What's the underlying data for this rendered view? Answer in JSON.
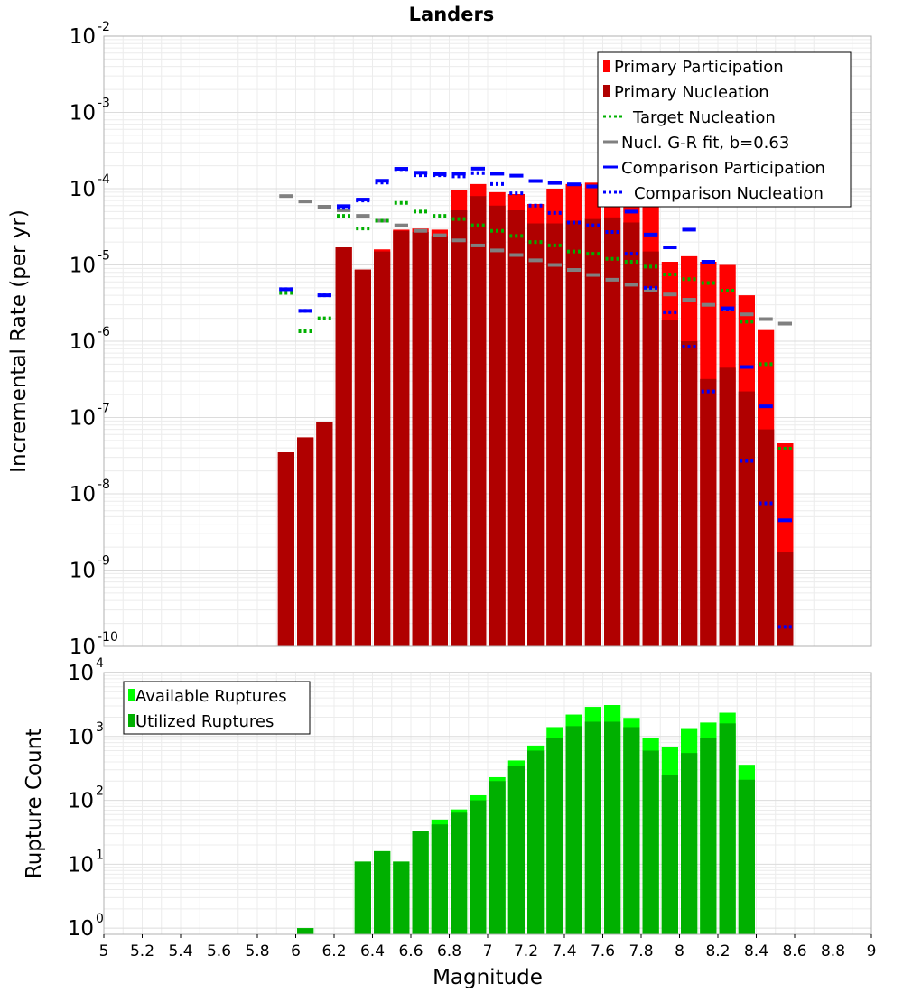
{
  "chart_data": [
    {
      "type": "bar",
      "title": "Landers",
      "xlabel": "",
      "ylabel": "Incremental Rate (per yr)",
      "yscale": "log",
      "xlim": [
        5,
        9
      ],
      "ylim": [
        1e-10,
        0.01
      ],
      "yticks": [
        {
          "base": "10",
          "exp": "-10"
        },
        {
          "base": "10",
          "exp": "-9"
        },
        {
          "base": "10",
          "exp": "-8"
        },
        {
          "base": "10",
          "exp": "-7"
        },
        {
          "base": "10",
          "exp": "-6"
        },
        {
          "base": "10",
          "exp": "-5"
        },
        {
          "base": "10",
          "exp": "-4"
        },
        {
          "base": "10",
          "exp": "-3"
        },
        {
          "base": "10",
          "exp": "-2"
        }
      ],
      "grid": true,
      "legend_placement": "top-right",
      "colors": {
        "primary_participation": "#ff0000",
        "primary_nucleation": "#b00000",
        "target_nucleation": "#00b000",
        "gr_fit": "#808080",
        "comparison": "#0000ff"
      },
      "legend": [
        "Primary Participation",
        "Primary Nucleation",
        "Target Nucleation",
        "Nucl. G-R fit, b=0.63",
        "Comparison Participation",
        "Comparison Nucleation"
      ],
      "magnitudes": [
        5.95,
        6.05,
        6.15,
        6.25,
        6.35,
        6.45,
        6.55,
        6.65,
        6.75,
        6.85,
        6.95,
        7.05,
        7.15,
        7.25,
        7.35,
        7.45,
        7.55,
        7.65,
        7.75,
        7.85,
        7.95,
        8.05,
        8.15,
        8.25,
        8.35,
        8.45,
        8.55
      ],
      "series": [
        {
          "name": "Primary Participation",
          "kind": "bar",
          "values": [
            3.5e-08,
            5.5e-08,
            8.8e-08,
            1.7e-05,
            8.7e-06,
            1.6e-05,
            2.9e-05,
            3e-05,
            2.9e-05,
            9.5e-05,
            0.000115,
            9e-05,
            8.5e-05,
            6.3e-05,
            0.0001,
            0.000115,
            0.00012,
            0.000145,
            0.00011,
            6.2e-05,
            1.1e-05,
            1.3e-05,
            1.1e-05,
            1e-05,
            4e-06,
            1.4e-06,
            4.6e-08
          ]
        },
        {
          "name": "Primary Nucleation",
          "kind": "bar",
          "values": [
            3.5e-08,
            5.5e-08,
            8.8e-08,
            1.7e-05,
            8.7e-06,
            1.5e-05,
            2.8e-05,
            2.7e-05,
            2.4e-05,
            5.2e-05,
            8e-05,
            6e-05,
            5.2e-05,
            3.5e-05,
            3.5e-05,
            3.8e-05,
            4e-05,
            4.2e-05,
            3.6e-05,
            1.5e-05,
            1.9e-06,
            1e-06,
            3.2e-07,
            4.5e-07,
            2.2e-07,
            7e-08,
            1.7e-09
          ]
        },
        {
          "name": "Target Nucleation",
          "kind": "dotted-step",
          "values": [
            4.3e-06,
            1.35e-06,
            2e-06,
            4.4e-05,
            3e-05,
            3.8e-05,
            6.5e-05,
            5e-05,
            4.4e-05,
            4e-05,
            3.3e-05,
            2.8e-05,
            2.4e-05,
            2e-05,
            1.8e-05,
            1.5e-05,
            1.4e-05,
            1.2e-05,
            1.1e-05,
            9.5e-06,
            7.5e-06,
            6.5e-06,
            5.8e-06,
            4.6e-06,
            1.8e-06,
            5e-07,
            3.9e-08
          ]
        },
        {
          "name": "Nucl. G-R fit, b=0.63",
          "kind": "step",
          "values": [
            8e-05,
            6.8e-05,
            5.8e-05,
            5.2e-05,
            4.4e-05,
            3.8e-05,
            3.3e-05,
            2.8e-05,
            2.45e-05,
            2.1e-05,
            1.8e-05,
            1.55e-05,
            1.35e-05,
            1.15e-05,
            1e-05,
            8.6e-06,
            7.4e-06,
            6.4e-06,
            5.5e-06,
            4.7e-06,
            4.1e-06,
            3.5e-06,
            3e-06,
            2.6e-06,
            2.25e-06,
            1.95e-06,
            1.7e-06
          ]
        },
        {
          "name": "Comparison Participation",
          "kind": "step",
          "values": [
            4.8e-06,
            2.5e-06,
            4e-06,
            5.9e-05,
            7.2e-05,
            0.000127,
            0.000182,
            0.000162,
            0.000155,
            0.000157,
            0.000183,
            0.000157,
            0.000148,
            0.000126,
            0.000119,
            0.000114,
            0.000107,
            9.2e-05,
            5e-05,
            2.5e-05,
            1.7e-05,
            2.9e-05,
            1.1e-05,
            2.7e-06,
            4.6e-07,
            1.4e-07,
            4.5e-09
          ]
        },
        {
          "name": "Comparison Nucleation",
          "kind": "dotted-step",
          "values": [
            4.8e-06,
            2.5e-06,
            4e-06,
            5.6e-05,
            7e-05,
            0.00012,
            0.00018,
            0.00015,
            0.00015,
            0.000145,
            0.00016,
            0.000115,
            8.7e-05,
            6e-05,
            4.8e-05,
            3.6e-05,
            3.3e-05,
            2.7e-05,
            1.4e-05,
            5e-06,
            2.4e-06,
            8.5e-07,
            2.2e-07,
            2.6e-06,
            2.7e-08,
            7.5e-09,
            1.8e-10
          ]
        }
      ]
    },
    {
      "type": "bar",
      "title": "",
      "xlabel": "Magnitude",
      "ylabel": "Rupture Count",
      "yscale": "log",
      "xlim": [
        5,
        9
      ],
      "ylim": [
        0.8,
        10000
      ],
      "xticks": [
        "5",
        "5.2",
        "5.4",
        "5.6",
        "5.8",
        "6",
        "6.2",
        "6.4",
        "6.6",
        "6.8",
        "7",
        "7.2",
        "7.4",
        "7.6",
        "7.8",
        "8",
        "8.2",
        "8.4",
        "8.6",
        "8.8",
        "9"
      ],
      "yticks": [
        {
          "base": "10",
          "exp": "0"
        },
        {
          "base": "10",
          "exp": "1"
        },
        {
          "base": "10",
          "exp": "2"
        },
        {
          "base": "10",
          "exp": "3"
        },
        {
          "base": "10",
          "exp": "4"
        }
      ],
      "grid": true,
      "legend_placement": "top-left",
      "colors": {
        "available": "#00ff00",
        "utilized": "#00b000"
      },
      "legend": [
        "Available Ruptures",
        "Utilized Ruptures"
      ],
      "magnitudes": [
        6.05,
        6.35,
        6.45,
        6.55,
        6.65,
        6.75,
        6.85,
        6.95,
        7.05,
        7.15,
        7.25,
        7.35,
        7.45,
        7.55,
        7.65,
        7.75,
        7.85,
        7.95,
        8.05,
        8.15,
        8.25,
        8.35
      ],
      "series": [
        {
          "name": "Available Ruptures",
          "values": [
            1,
            11,
            16,
            11,
            33,
            50,
            72,
            120,
            230,
            420,
            720,
            1400,
            2200,
            2900,
            3100,
            1950,
            950,
            690,
            1350,
            1650,
            2350,
            360
          ]
        },
        {
          "name": "Utilized Ruptures",
          "values": [
            1,
            11,
            16,
            11,
            33,
            42,
            64,
            100,
            200,
            350,
            600,
            950,
            1450,
            1700,
            1700,
            1400,
            600,
            250,
            550,
            950,
            1600,
            210
          ]
        }
      ]
    }
  ]
}
